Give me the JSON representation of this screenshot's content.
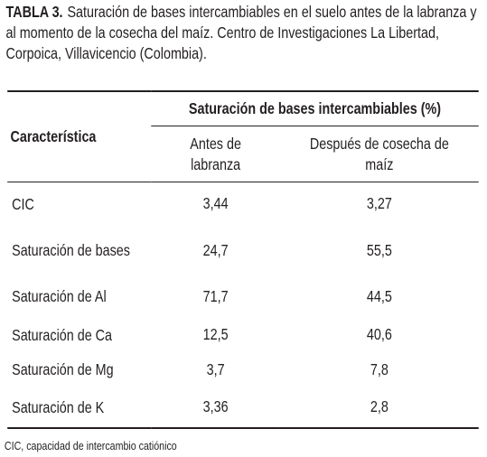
{
  "caption": {
    "label": "TABLA 3.",
    "text": "Saturación de bases intercambiables en el suelo antes de la labranza y al momento de la cosecha del maíz. Centro de Investigaciones La Libertad, Corpoica, Villavicencio (Colombia)."
  },
  "table": {
    "row_header": "Característica",
    "group_header": "Saturación de bases intercambiables (%)",
    "columns": [
      "Antes de labranza",
      "Después de cosecha de maíz"
    ],
    "rows": [
      [
        "CIC",
        "3,44",
        "3,27"
      ],
      [
        "Saturación de bases",
        "24,7",
        "55,5"
      ],
      [
        "Saturación de Al",
        "71,7",
        "44,5"
      ],
      [
        "Saturación de Ca",
        "12,5",
        "40,6"
      ],
      [
        "Saturación de Mg",
        "3,7",
        "7,8"
      ],
      [
        "Saturación de K",
        "3,36",
        "2,8"
      ]
    ]
  },
  "footnote": "CIC, capacidad de intercambio catiónico"
}
